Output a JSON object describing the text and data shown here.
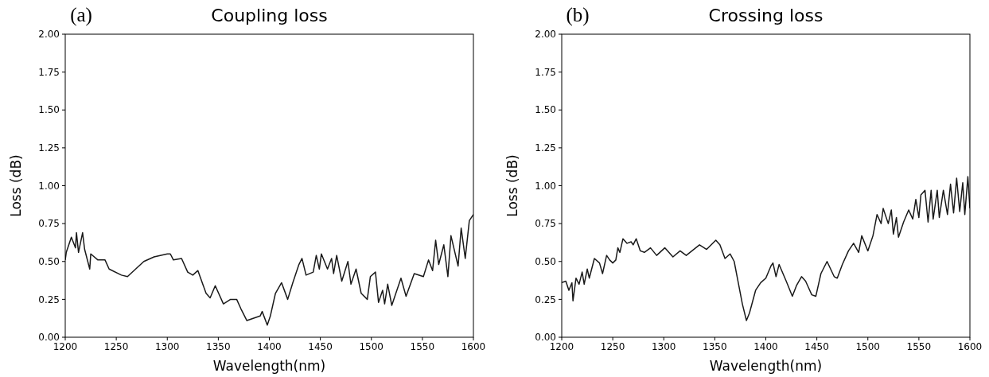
{
  "chart_data": [
    {
      "type": "line",
      "title": "Coupling loss",
      "xlabel": "Wavelength(nm)",
      "ylabel": "Loss (dB)",
      "annotations": [
        "(a)"
      ],
      "xlim": [
        1200,
        1600
      ],
      "ylim": [
        0,
        2
      ],
      "xticks": [
        1200,
        1250,
        1300,
        1350,
        1400,
        1450,
        1500,
        1550,
        1600
      ],
      "yticks": [
        {
          "value": 0,
          "label": "0.00"
        },
        {
          "value": 0.25,
          "label": "0.25"
        },
        {
          "value": 0.5,
          "label": "0.50"
        },
        {
          "value": 0.75,
          "label": "0.75"
        },
        {
          "value": 1,
          "label": "1.00"
        },
        {
          "value": 1.25,
          "label": "1.25"
        },
        {
          "value": 1.5,
          "label": "1.50"
        },
        {
          "value": 1.75,
          "label": "1.75"
        },
        {
          "value": 2,
          "label": "2.00"
        }
      ],
      "grid": false,
      "line_style": "solid",
      "series": [
        {
          "color": "#1a1a1a",
          "x": [
            1200,
            1201,
            1206,
            1210,
            1211,
            1213,
            1217,
            1219,
            1224,
            1225,
            1232,
            1239,
            1243,
            1255,
            1261,
            1277,
            1287,
            1300,
            1303,
            1306,
            1314,
            1320,
            1325,
            1330,
            1338,
            1342,
            1347,
            1355,
            1362,
            1368,
            1372,
            1378,
            1391,
            1393,
            1398,
            1401,
            1406,
            1412,
            1418,
            1423,
            1429,
            1432,
            1436,
            1443,
            1446,
            1449,
            1451,
            1457,
            1461,
            1463,
            1466,
            1471,
            1477,
            1480,
            1485,
            1490,
            1496,
            1499,
            1504,
            1507,
            1511,
            1513,
            1516,
            1520,
            1529,
            1534,
            1542,
            1551,
            1556,
            1560,
            1563,
            1566,
            1571,
            1575,
            1578,
            1585,
            1588,
            1592,
            1596,
            1599,
            1600
          ],
          "values": [
            0.51,
            0.56,
            0.66,
            0.59,
            0.69,
            0.56,
            0.69,
            0.58,
            0.45,
            0.55,
            0.51,
            0.51,
            0.45,
            0.41,
            0.4,
            0.5,
            0.53,
            0.55,
            0.55,
            0.51,
            0.52,
            0.43,
            0.41,
            0.44,
            0.29,
            0.26,
            0.34,
            0.22,
            0.25,
            0.25,
            0.19,
            0.11,
            0.14,
            0.17,
            0.08,
            0.14,
            0.29,
            0.36,
            0.25,
            0.36,
            0.48,
            0.52,
            0.41,
            0.43,
            0.54,
            0.45,
            0.55,
            0.45,
            0.52,
            0.42,
            0.54,
            0.37,
            0.5,
            0.35,
            0.45,
            0.29,
            0.25,
            0.4,
            0.43,
            0.23,
            0.31,
            0.22,
            0.35,
            0.21,
            0.39,
            0.27,
            0.42,
            0.4,
            0.51,
            0.44,
            0.64,
            0.48,
            0.61,
            0.4,
            0.67,
            0.47,
            0.72,
            0.52,
            0.77,
            0.8,
            0.81
          ]
        }
      ]
    },
    {
      "type": "line",
      "title": "Crossing loss",
      "xlabel": "Wavelength(nm)",
      "ylabel": "Loss (dB)",
      "annotations": [
        "(b)"
      ],
      "xlim": [
        1200,
        1600
      ],
      "ylim": [
        0,
        2
      ],
      "xticks": [
        1200,
        1250,
        1300,
        1350,
        1400,
        1450,
        1500,
        1550,
        1600
      ],
      "yticks": [
        {
          "value": 0,
          "label": "0.00"
        },
        {
          "value": 0.25,
          "label": "0.25"
        },
        {
          "value": 0.5,
          "label": "0.50"
        },
        {
          "value": 0.75,
          "label": "0.75"
        },
        {
          "value": 1,
          "label": "1.00"
        },
        {
          "value": 1.25,
          "label": "1.25"
        },
        {
          "value": 1.5,
          "label": "1.50"
        },
        {
          "value": 1.75,
          "label": "1.75"
        },
        {
          "value": 2,
          "label": "2.00"
        }
      ],
      "grid": false,
      "line_style": "solid",
      "series": [
        {
          "color": "#1a1a1a",
          "x": [
            1200,
            1204,
            1207,
            1210,
            1211,
            1214,
            1217,
            1220,
            1222,
            1225,
            1227,
            1232,
            1237,
            1240,
            1244,
            1247,
            1250,
            1253,
            1255,
            1257,
            1260,
            1264,
            1268,
            1270,
            1273,
            1277,
            1281,
            1287,
            1293,
            1301,
            1309,
            1316,
            1322,
            1335,
            1342,
            1351,
            1355,
            1360,
            1365,
            1369,
            1373,
            1377,
            1381,
            1384,
            1390,
            1395,
            1400,
            1405,
            1407,
            1410,
            1413,
            1420,
            1426,
            1430,
            1435,
            1439,
            1445,
            1449,
            1454,
            1460,
            1467,
            1470,
            1475,
            1481,
            1486,
            1491,
            1494,
            1500,
            1505,
            1509,
            1513,
            1515,
            1520,
            1523,
            1525,
            1528,
            1530,
            1535,
            1540,
            1544,
            1547,
            1550,
            1552,
            1556,
            1559,
            1562,
            1564,
            1568,
            1570,
            1574,
            1578,
            1581,
            1584,
            1587,
            1590,
            1593,
            1595,
            1598,
            1600
          ],
          "values": [
            0.36,
            0.37,
            0.31,
            0.36,
            0.24,
            0.39,
            0.35,
            0.43,
            0.35,
            0.45,
            0.39,
            0.52,
            0.49,
            0.42,
            0.54,
            0.51,
            0.49,
            0.51,
            0.59,
            0.56,
            0.65,
            0.62,
            0.63,
            0.61,
            0.65,
            0.57,
            0.56,
            0.59,
            0.54,
            0.59,
            0.53,
            0.57,
            0.54,
            0.61,
            0.58,
            0.64,
            0.61,
            0.52,
            0.55,
            0.5,
            0.36,
            0.22,
            0.11,
            0.16,
            0.31,
            0.36,
            0.39,
            0.47,
            0.49,
            0.4,
            0.48,
            0.37,
            0.27,
            0.34,
            0.4,
            0.37,
            0.28,
            0.27,
            0.42,
            0.5,
            0.4,
            0.39,
            0.48,
            0.57,
            0.62,
            0.56,
            0.67,
            0.57,
            0.67,
            0.81,
            0.75,
            0.85,
            0.75,
            0.84,
            0.68,
            0.79,
            0.66,
            0.76,
            0.84,
            0.78,
            0.91,
            0.79,
            0.94,
            0.97,
            0.76,
            0.97,
            0.78,
            0.97,
            0.79,
            0.97,
            0.81,
            1.01,
            0.82,
            1.05,
            0.83,
            1.02,
            0.81,
            1.06,
            0.85
          ]
        }
      ]
    }
  ]
}
